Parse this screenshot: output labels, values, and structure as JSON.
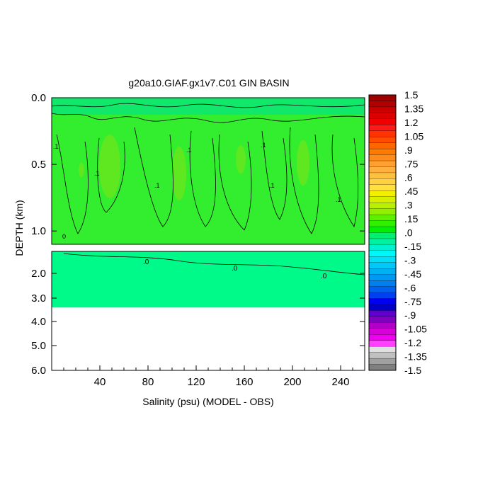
{
  "chart_data": {
    "type": "heatmap",
    "title": "g20a10.GIAF.gx1v7.C01 GIN BASIN",
    "xlabel": "Salinity (psu) (MODEL - OBS)",
    "ylabel": "DEPTH (km)",
    "x_range": [
      0,
      260
    ],
    "x_ticks": [
      "40",
      "80",
      "120",
      "160",
      "200",
      "240"
    ],
    "y_ticks_upper": [
      "0.0",
      "0.5",
      "1.0"
    ],
    "y_ticks_lower": [
      "2.0",
      "3.0",
      "4.0",
      "5.0",
      "6.0"
    ],
    "upper_panel_depth_km": [
      0,
      1.1
    ],
    "lower_panel_depth_km": [
      1.1,
      6.0
    ],
    "seafloor_depth_km": 3.4,
    "contour_labels_upper": [
      ".1",
      ".1",
      ".1",
      ".1",
      ".1",
      ".1",
      "0",
      ".1"
    ],
    "contour_labels_lower": [
      ".0",
      ".0",
      ".0"
    ],
    "colorbar": {
      "labels": [
        "1.5",
        "1.35",
        "1.2",
        "1.05",
        ".9",
        ".75",
        ".6",
        ".45",
        ".3",
        ".15",
        ".0",
        "-.15",
        "-.3",
        "-.45",
        "-.6",
        "-.75",
        "-.9",
        "-1.05",
        "-1.2",
        "-1.35",
        "-1.5"
      ],
      "colors": [
        "#9e0000",
        "#b00000",
        "#c80000",
        "#dc0000",
        "#f00000",
        "#ff1a1a",
        "#ff3300",
        "#ff4d00",
        "#ff6600",
        "#ff7a00",
        "#ff8c1a",
        "#ffa030",
        "#ffb040",
        "#ffc040",
        "#ffd040",
        "#ffe040",
        "#f0f000",
        "#d8f000",
        "#b8f000",
        "#90f000",
        "#5ef000",
        "#30f000",
        "#00f000",
        "#00f070",
        "#00f0a0",
        "#00f0d0",
        "#00f8f8",
        "#00e0f8",
        "#00c8f8",
        "#00b0f0",
        "#0098f0",
        "#0080f0",
        "#0060f0",
        "#0040f0",
        "#0000f0",
        "#0000c8",
        "#6000d0",
        "#8000c0",
        "#b000c8",
        "#d800d8",
        "#f000f0",
        "#ff40ff",
        "#e0e0e0",
        "#c0c0c0",
        "#a0a0a0",
        "#808080"
      ]
    },
    "colors": {
      "upper_fill": "#33ee2e",
      "upper_top_band": "#11e86b",
      "upper_highlight": "#5fe71f",
      "lower_fill": "#00fa8a"
    }
  }
}
